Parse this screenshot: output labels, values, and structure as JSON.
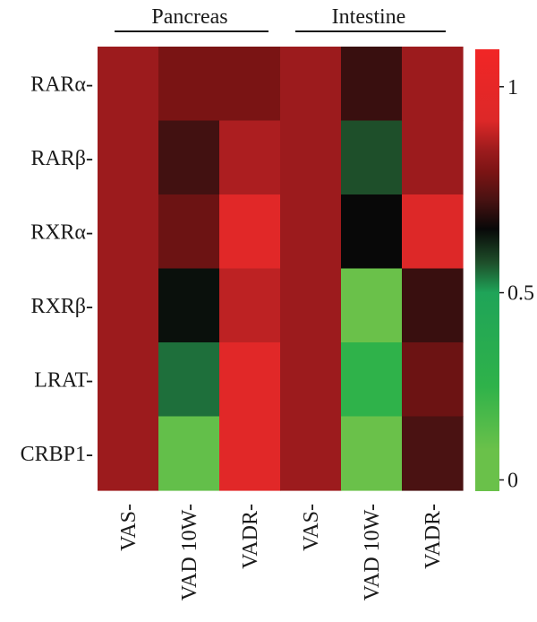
{
  "chart_data": {
    "type": "heatmap",
    "groups": [
      {
        "label": "Pancreas",
        "columns": [
          0,
          1,
          2
        ]
      },
      {
        "label": "Intestine",
        "columns": [
          3,
          4,
          5
        ]
      }
    ],
    "columns": [
      "VAS-",
      "VAD 10W-",
      "VADR-",
      "VAS-",
      "VAD 10W-",
      "VADR-"
    ],
    "rows": [
      "RARα-",
      "RARβ-",
      "RXRα-",
      "RXRβ-",
      "LRAT-",
      "CRBP1-"
    ],
    "values": [
      [
        0.88,
        0.82,
        0.82,
        0.88,
        0.73,
        0.88
      ],
      [
        0.88,
        0.74,
        0.9,
        0.88,
        0.58,
        0.88
      ],
      [
        0.88,
        0.8,
        1.0,
        0.88,
        0.67,
        0.96
      ],
      [
        0.88,
        0.66,
        0.92,
        0.88,
        0.08,
        0.73
      ],
      [
        0.88,
        0.55,
        1.0,
        0.88,
        0.25,
        0.8
      ],
      [
        0.88,
        0.1,
        1.0,
        0.88,
        0.08,
        0.75
      ]
    ],
    "colorbar": {
      "ticks": [
        {
          "value": 1.05,
          "label": "1"
        },
        {
          "value": 0.5,
          "label": "0.5"
        },
        {
          "value": 0,
          "label": "0"
        }
      ],
      "range": [
        -0.03,
        1.15
      ],
      "colors": [
        {
          "value": -0.03,
          "color": "#6ac14a"
        },
        {
          "value": 0.08,
          "color": "#6ac14a"
        },
        {
          "value": 0.25,
          "color": "#2fb24a"
        },
        {
          "value": 0.5,
          "color": "#1fa458"
        },
        {
          "value": 0.58,
          "color": "#1e4f2a"
        },
        {
          "value": 0.67,
          "color": "#080808"
        },
        {
          "value": 0.75,
          "color": "#4a1212"
        },
        {
          "value": 0.82,
          "color": "#7a1414"
        },
        {
          "value": 0.88,
          "color": "#9c1b1d"
        },
        {
          "value": 0.96,
          "color": "#dd2828"
        },
        {
          "value": 1.15,
          "color": "#f12626"
        }
      ]
    }
  }
}
